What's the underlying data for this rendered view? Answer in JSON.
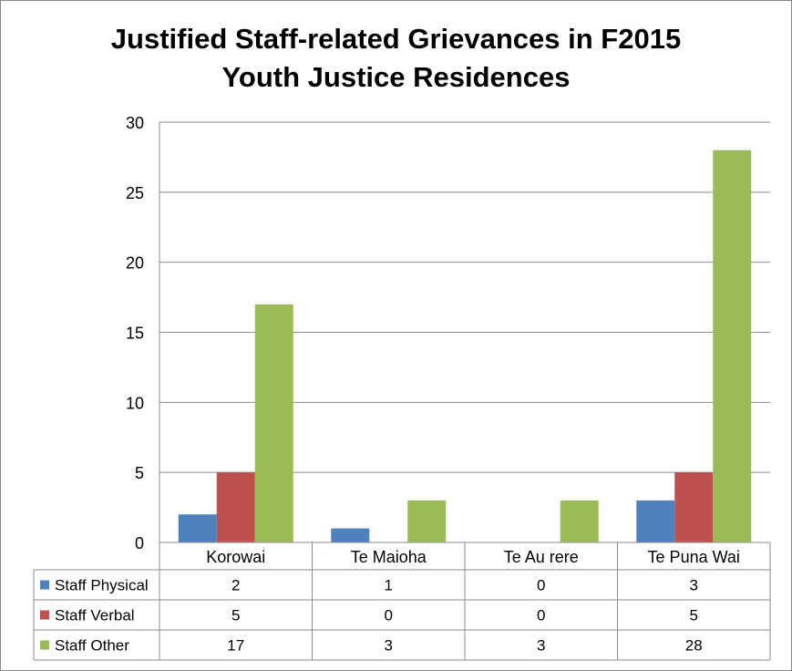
{
  "chart_data": {
    "type": "bar",
    "title_line1": "Justified Staff-related Grievances in F2015",
    "title_line2": "Youth Justice Residences",
    "categories": [
      "Korowai",
      "Te Maioha",
      "Te Au rere",
      "Te Puna Wai"
    ],
    "series": [
      {
        "name": "Staff Physical",
        "color": "#4F81BD",
        "values": [
          2,
          1,
          0,
          3
        ]
      },
      {
        "name": "Staff Verbal",
        "color": "#C0504D",
        "values": [
          5,
          0,
          0,
          5
        ]
      },
      {
        "name": "Staff Other",
        "color": "#9BBB59",
        "values": [
          17,
          3,
          3,
          28
        ]
      }
    ],
    "ylim": [
      0,
      30
    ],
    "yticks": [
      0,
      5,
      10,
      15,
      20,
      25,
      30
    ],
    "grid": true,
    "legend": "data-table"
  }
}
